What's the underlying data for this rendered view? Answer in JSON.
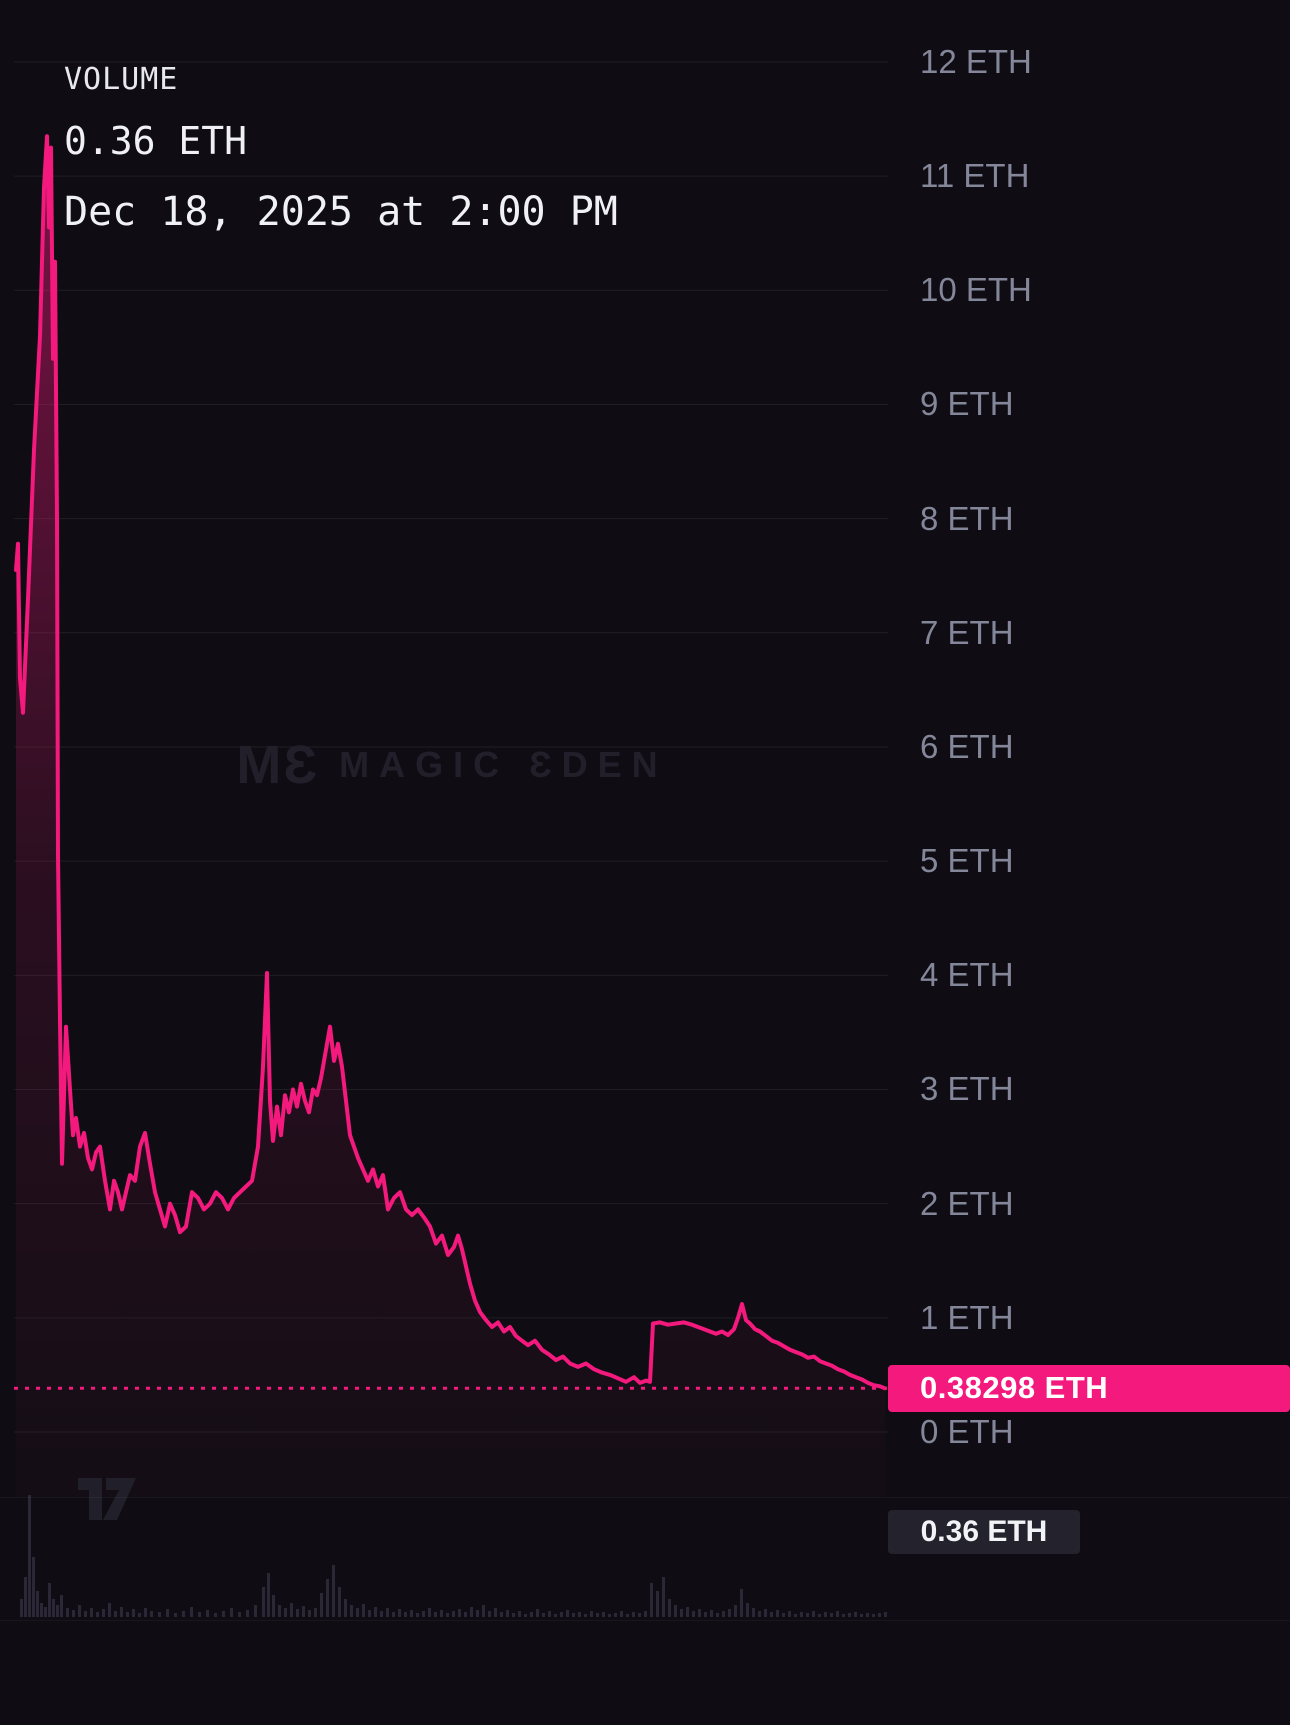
{
  "legend": {
    "title": "VOLUME",
    "value": "0.36 ETH",
    "timestamp": "Dec 18, 2025 at 2:00 PM"
  },
  "watermark": {
    "logo": "MƐ",
    "text": "MAGIC ƐDEN"
  },
  "axis": {
    "unit": "ETH",
    "labels": [
      {
        "value": 12,
        "label": "12 ETH"
      },
      {
        "value": 11,
        "label": "11 ETH"
      },
      {
        "value": 10,
        "label": "10 ETH"
      },
      {
        "value": 9,
        "label": "9 ETH"
      },
      {
        "value": 8,
        "label": "8 ETH"
      },
      {
        "value": 7,
        "label": "7 ETH"
      },
      {
        "value": 6,
        "label": "6 ETH"
      },
      {
        "value": 5,
        "label": "5 ETH"
      },
      {
        "value": 4,
        "label": "4 ETH"
      },
      {
        "value": 3,
        "label": "3 ETH"
      },
      {
        "value": 2,
        "label": "2 ETH"
      },
      {
        "value": 1,
        "label": "1 ETH"
      },
      {
        "value": 0,
        "label": "0 ETH"
      }
    ]
  },
  "price_badge": {
    "label": "0.38298 ETH",
    "value": 0.38298,
    "color": "#f3197d"
  },
  "volume_badge": {
    "label": "0.36 ETH"
  },
  "colors": {
    "background": "#0f0d13",
    "accent_pink": "#f3197d",
    "axis_text": "#84879a",
    "grid": "rgba(255,255,255,0.07)",
    "watermark": "#221f2b"
  },
  "chart_data": {
    "type": "area",
    "title": "VOLUME 0.36 ETH",
    "subtitle": "Dec 18, 2025 at 2:00 PM",
    "ylabel": "ETH",
    "ylim": [
      0,
      12
    ],
    "grid": "horizontal",
    "legend_position": "top-left",
    "unit": "ETH",
    "current_price": 0.38298,
    "series": [
      {
        "name": "price",
        "points": [
          [
            16,
            7.55
          ],
          [
            18,
            7.78
          ],
          [
            20,
            6.6
          ],
          [
            23,
            6.3
          ],
          [
            28,
            7.3
          ],
          [
            34,
            8.6
          ],
          [
            40,
            9.6
          ],
          [
            44,
            10.9
          ],
          [
            47,
            11.35
          ],
          [
            49,
            10.55
          ],
          [
            51,
            11.25
          ],
          [
            53,
            9.4
          ],
          [
            55,
            10.25
          ],
          [
            57,
            8.0
          ],
          [
            58,
            5.05
          ],
          [
            60,
            3.6
          ],
          [
            62,
            2.35
          ],
          [
            66,
            3.55
          ],
          [
            70,
            3.0
          ],
          [
            73,
            2.6
          ],
          [
            76,
            2.75
          ],
          [
            80,
            2.5
          ],
          [
            84,
            2.62
          ],
          [
            88,
            2.4
          ],
          [
            92,
            2.3
          ],
          [
            96,
            2.45
          ],
          [
            100,
            2.5
          ],
          [
            105,
            2.2
          ],
          [
            110,
            1.95
          ],
          [
            114,
            2.2
          ],
          [
            118,
            2.1
          ],
          [
            122,
            1.95
          ],
          [
            126,
            2.1
          ],
          [
            130,
            2.25
          ],
          [
            135,
            2.2
          ],
          [
            140,
            2.5
          ],
          [
            145,
            2.62
          ],
          [
            150,
            2.35
          ],
          [
            155,
            2.1
          ],
          [
            160,
            1.95
          ],
          [
            165,
            1.8
          ],
          [
            170,
            2.0
          ],
          [
            175,
            1.9
          ],
          [
            180,
            1.75
          ],
          [
            186,
            1.8
          ],
          [
            192,
            2.1
          ],
          [
            198,
            2.05
          ],
          [
            204,
            1.95
          ],
          [
            210,
            2.0
          ],
          [
            216,
            2.1
          ],
          [
            222,
            2.05
          ],
          [
            228,
            1.95
          ],
          [
            234,
            2.05
          ],
          [
            240,
            2.1
          ],
          [
            246,
            2.15
          ],
          [
            252,
            2.2
          ],
          [
            258,
            2.5
          ],
          [
            263,
            3.2
          ],
          [
            267,
            4.02
          ],
          [
            270,
            2.9
          ],
          [
            273,
            2.55
          ],
          [
            277,
            2.85
          ],
          [
            281,
            2.6
          ],
          [
            285,
            2.95
          ],
          [
            289,
            2.8
          ],
          [
            293,
            3.0
          ],
          [
            297,
            2.85
          ],
          [
            301,
            3.05
          ],
          [
            305,
            2.9
          ],
          [
            309,
            2.8
          ],
          [
            313,
            3.0
          ],
          [
            317,
            2.95
          ],
          [
            321,
            3.1
          ],
          [
            325,
            3.3
          ],
          [
            330,
            3.55
          ],
          [
            334,
            3.25
          ],
          [
            338,
            3.4
          ],
          [
            342,
            3.2
          ],
          [
            346,
            2.9
          ],
          [
            350,
            2.6
          ],
          [
            354,
            2.5
          ],
          [
            358,
            2.4
          ],
          [
            363,
            2.3
          ],
          [
            368,
            2.2
          ],
          [
            373,
            2.3
          ],
          [
            378,
            2.15
          ],
          [
            383,
            2.25
          ],
          [
            388,
            1.95
          ],
          [
            394,
            2.05
          ],
          [
            400,
            2.1
          ],
          [
            406,
            1.95
          ],
          [
            412,
            1.9
          ],
          [
            418,
            1.95
          ],
          [
            424,
            1.88
          ],
          [
            430,
            1.8
          ],
          [
            436,
            1.65
          ],
          [
            442,
            1.72
          ],
          [
            448,
            1.55
          ],
          [
            454,
            1.62
          ],
          [
            458,
            1.72
          ],
          [
            462,
            1.6
          ],
          [
            466,
            1.45
          ],
          [
            470,
            1.3
          ],
          [
            475,
            1.15
          ],
          [
            480,
            1.05
          ],
          [
            486,
            0.98
          ],
          [
            492,
            0.92
          ],
          [
            498,
            0.96
          ],
          [
            504,
            0.88
          ],
          [
            510,
            0.92
          ],
          [
            516,
            0.84
          ],
          [
            522,
            0.8
          ],
          [
            528,
            0.76
          ],
          [
            535,
            0.8
          ],
          [
            542,
            0.72
          ],
          [
            549,
            0.68
          ],
          [
            556,
            0.63
          ],
          [
            563,
            0.66
          ],
          [
            570,
            0.6
          ],
          [
            578,
            0.57
          ],
          [
            586,
            0.6
          ],
          [
            594,
            0.55
          ],
          [
            602,
            0.52
          ],
          [
            610,
            0.5
          ],
          [
            618,
            0.47
          ],
          [
            626,
            0.44
          ],
          [
            634,
            0.48
          ],
          [
            640,
            0.43
          ],
          [
            646,
            0.45
          ],
          [
            650,
            0.44
          ],
          [
            653,
            0.95
          ],
          [
            660,
            0.96
          ],
          [
            668,
            0.94
          ],
          [
            676,
            0.95
          ],
          [
            684,
            0.96
          ],
          [
            692,
            0.94
          ],
          [
            698,
            0.92
          ],
          [
            704,
            0.9
          ],
          [
            710,
            0.88
          ],
          [
            716,
            0.86
          ],
          [
            722,
            0.88
          ],
          [
            728,
            0.85
          ],
          [
            734,
            0.9
          ],
          [
            738,
            1.0
          ],
          [
            742,
            1.12
          ],
          [
            746,
            0.98
          ],
          [
            750,
            0.95
          ],
          [
            755,
            0.9
          ],
          [
            760,
            0.88
          ],
          [
            766,
            0.84
          ],
          [
            772,
            0.8
          ],
          [
            778,
            0.78
          ],
          [
            784,
            0.75
          ],
          [
            790,
            0.72
          ],
          [
            796,
            0.7
          ],
          [
            802,
            0.68
          ],
          [
            808,
            0.65
          ],
          [
            814,
            0.66
          ],
          [
            820,
            0.62
          ],
          [
            826,
            0.6
          ],
          [
            832,
            0.58
          ],
          [
            838,
            0.55
          ],
          [
            844,
            0.53
          ],
          [
            850,
            0.5
          ],
          [
            856,
            0.48
          ],
          [
            862,
            0.46
          ],
          [
            868,
            0.43
          ],
          [
            874,
            0.41
          ],
          [
            880,
            0.4
          ],
          [
            885,
            0.383
          ]
        ]
      }
    ],
    "volume_bars": [
      [
        20,
        18
      ],
      [
        24,
        40
      ],
      [
        28,
        122
      ],
      [
        32,
        60
      ],
      [
        36,
        26
      ],
      [
        40,
        14
      ],
      [
        44,
        10
      ],
      [
        48,
        34
      ],
      [
        52,
        18
      ],
      [
        56,
        12
      ],
      [
        60,
        22
      ],
      [
        66,
        9
      ],
      [
        72,
        7
      ],
      [
        78,
        12
      ],
      [
        84,
        6
      ],
      [
        90,
        9
      ],
      [
        96,
        5
      ],
      [
        102,
        8
      ],
      [
        108,
        14
      ],
      [
        114,
        6
      ],
      [
        120,
        10
      ],
      [
        126,
        5
      ],
      [
        132,
        8
      ],
      [
        138,
        4
      ],
      [
        144,
        9
      ],
      [
        150,
        6
      ],
      [
        158,
        5
      ],
      [
        166,
        8
      ],
      [
        174,
        4
      ],
      [
        182,
        6
      ],
      [
        190,
        10
      ],
      [
        198,
        5
      ],
      [
        206,
        7
      ],
      [
        214,
        4
      ],
      [
        222,
        6
      ],
      [
        230,
        9
      ],
      [
        238,
        5
      ],
      [
        246,
        7
      ],
      [
        254,
        12
      ],
      [
        262,
        30
      ],
      [
        267,
        44
      ],
      [
        272,
        22
      ],
      [
        278,
        12
      ],
      [
        284,
        9
      ],
      [
        290,
        14
      ],
      [
        296,
        8
      ],
      [
        302,
        11
      ],
      [
        308,
        7
      ],
      [
        314,
        9
      ],
      [
        320,
        24
      ],
      [
        326,
        38
      ],
      [
        332,
        52
      ],
      [
        338,
        30
      ],
      [
        344,
        18
      ],
      [
        350,
        12
      ],
      [
        356,
        9
      ],
      [
        362,
        13
      ],
      [
        368,
        7
      ],
      [
        374,
        10
      ],
      [
        380,
        6
      ],
      [
        386,
        9
      ],
      [
        392,
        5
      ],
      [
        398,
        8
      ],
      [
        404,
        5
      ],
      [
        410,
        7
      ],
      [
        416,
        4
      ],
      [
        422,
        6
      ],
      [
        428,
        9
      ],
      [
        434,
        5
      ],
      [
        440,
        7
      ],
      [
        446,
        4
      ],
      [
        452,
        6
      ],
      [
        458,
        8
      ],
      [
        464,
        5
      ],
      [
        470,
        10
      ],
      [
        476,
        7
      ],
      [
        482,
        12
      ],
      [
        488,
        6
      ],
      [
        494,
        9
      ],
      [
        500,
        5
      ],
      [
        506,
        7
      ],
      [
        512,
        4
      ],
      [
        518,
        6
      ],
      [
        524,
        3
      ],
      [
        530,
        5
      ],
      [
        536,
        8
      ],
      [
        542,
        4
      ],
      [
        548,
        6
      ],
      [
        554,
        3
      ],
      [
        560,
        5
      ],
      [
        566,
        7
      ],
      [
        572,
        4
      ],
      [
        578,
        5
      ],
      [
        584,
        3
      ],
      [
        590,
        6
      ],
      [
        596,
        4
      ],
      [
        602,
        5
      ],
      [
        608,
        3
      ],
      [
        614,
        4
      ],
      [
        620,
        6
      ],
      [
        626,
        3
      ],
      [
        632,
        5
      ],
      [
        638,
        4
      ],
      [
        644,
        6
      ],
      [
        650,
        34
      ],
      [
        656,
        26
      ],
      [
        662,
        40
      ],
      [
        668,
        18
      ],
      [
        674,
        12
      ],
      [
        680,
        8
      ],
      [
        686,
        10
      ],
      [
        692,
        6
      ],
      [
        698,
        8
      ],
      [
        704,
        5
      ],
      [
        710,
        7
      ],
      [
        716,
        4
      ],
      [
        722,
        6
      ],
      [
        728,
        8
      ],
      [
        734,
        12
      ],
      [
        740,
        28
      ],
      [
        746,
        14
      ],
      [
        752,
        9
      ],
      [
        758,
        6
      ],
      [
        764,
        8
      ],
      [
        770,
        5
      ],
      [
        776,
        7
      ],
      [
        782,
        4
      ],
      [
        788,
        6
      ],
      [
        794,
        3
      ],
      [
        800,
        5
      ],
      [
        806,
        4
      ],
      [
        812,
        6
      ],
      [
        818,
        3
      ],
      [
        824,
        5
      ],
      [
        830,
        4
      ],
      [
        836,
        6
      ],
      [
        842,
        3
      ],
      [
        848,
        4
      ],
      [
        854,
        5
      ],
      [
        860,
        3
      ],
      [
        866,
        4
      ],
      [
        872,
        3
      ],
      [
        878,
        4
      ],
      [
        884,
        5
      ]
    ]
  }
}
